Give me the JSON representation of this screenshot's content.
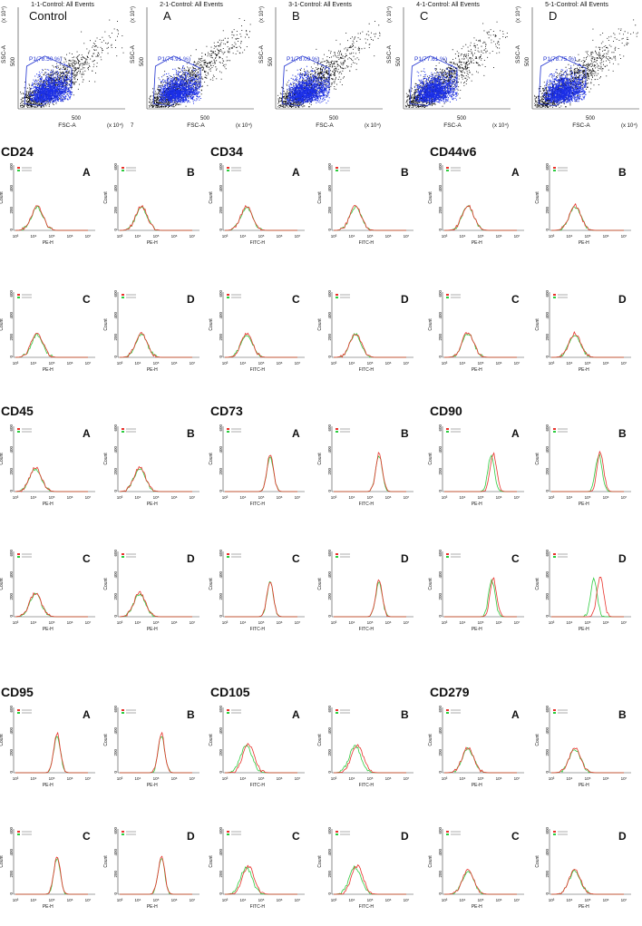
{
  "figure": {
    "scatter_panels": [
      {
        "title": "1-1-Control: All Events",
        "letter": "Control",
        "gate_label": "P1(78.50 %)",
        "xlabel": "FSC-A",
        "ylabel": "SSC-A",
        "x_scale": "(x 10⁴)",
        "y_scale": "(x 10⁴)",
        "x_tick": "500",
        "x_extra": "7",
        "y_tick": "500"
      },
      {
        "title": "2-1-Control: All Events",
        "letter": "A",
        "gate_label": "P1(74.91 %)",
        "xlabel": "FSC-A",
        "ylabel": "SSC-A",
        "x_scale": "(x 10⁴)",
        "y_scale": "(x 10⁴)",
        "x_tick": "500",
        "y_tick": "500"
      },
      {
        "title": "3-1-Control: All Events",
        "letter": "B",
        "gate_label": "P1(78.09 %)",
        "xlabel": "FSC-A",
        "ylabel": "SSC-A",
        "x_scale": "(x 10⁴)",
        "y_scale": "(x 10⁴)",
        "x_tick": "500",
        "y_tick": "500"
      },
      {
        "title": "4-1-Control: All Events",
        "letter": "C",
        "gate_label": "P1(77.61 %)",
        "xlabel": "FSC-A",
        "ylabel": "SSC-A",
        "x_scale": "(x 10⁴)",
        "y_scale": "(x 10⁴)",
        "x_tick": "500",
        "y_tick": "500"
      },
      {
        "title": "5-1-Control: All Events",
        "letter": "D",
        "gate_label": "P1(78.75 %)",
        "xlabel": "FSC-A",
        "ylabel": "SSC-A",
        "x_scale": "(x 10⁴)",
        "y_scale": "(x 10⁴)",
        "x_tick": "500",
        "y_tick": "500"
      }
    ],
    "marker_groups": [
      {
        "name": "CD24",
        "channel": "PE-H",
        "peak_log": 4.2,
        "panels": [
          {
            "letter": "A",
            "peak": 220
          },
          {
            "letter": "B",
            "peak": 220
          },
          {
            "letter": "C",
            "peak": 220
          },
          {
            "letter": "D",
            "peak": 220
          }
        ]
      },
      {
        "name": "CD34",
        "channel": "FITC-H",
        "peak_log": 4.2,
        "panels": [
          {
            "letter": "A",
            "peak": 220
          },
          {
            "letter": "B",
            "peak": 220
          },
          {
            "letter": "C",
            "peak": 220
          },
          {
            "letter": "D",
            "peak": 220
          }
        ]
      },
      {
        "name": "CD44v6",
        "channel": "PE-H",
        "peak_log": 4.3,
        "panels": [
          {
            "letter": "A",
            "peak": 230
          },
          {
            "letter": "B",
            "peak": 230
          },
          {
            "letter": "C",
            "peak": 230
          },
          {
            "letter": "D",
            "peak": 220
          }
        ]
      },
      {
        "name": "CD45",
        "channel": "PE-H",
        "peak_log": 4.1,
        "panels": [
          {
            "letter": "A",
            "peak": 220
          },
          {
            "letter": "B",
            "peak": 220
          },
          {
            "letter": "C",
            "peak": 220
          },
          {
            "letter": "D",
            "peak": 220
          }
        ]
      },
      {
        "name": "CD73",
        "channel": "FITC-H",
        "peak_log": 5.5,
        "panels": [
          {
            "letter": "A",
            "peak": 340
          },
          {
            "letter": "B",
            "peak": 350
          },
          {
            "letter": "C",
            "peak": 330
          },
          {
            "letter": "D",
            "peak": 340
          }
        ]
      },
      {
        "name": "CD90",
        "channel": "PE-H",
        "peak_log": 5.7,
        "panels": [
          {
            "letter": "A",
            "peak": 350
          },
          {
            "letter": "B",
            "peak": 360
          },
          {
            "letter": "C",
            "peak": 350
          },
          {
            "letter": "D",
            "peak": 370
          }
        ]
      },
      {
        "name": "CD95",
        "channel": "PE-H",
        "peak_log": 5.3,
        "panels": [
          {
            "letter": "A",
            "peak": 360
          },
          {
            "letter": "B",
            "peak": 360
          },
          {
            "letter": "C",
            "peak": 350
          },
          {
            "letter": "D",
            "peak": 350
          }
        ]
      },
      {
        "name": "CD105",
        "channel": "FITC-H",
        "peak_log": 4.3,
        "panels": [
          {
            "letter": "A",
            "peak": 260
          },
          {
            "letter": "B",
            "peak": 260
          },
          {
            "letter": "C",
            "peak": 260
          },
          {
            "letter": "D",
            "peak": 260
          }
        ]
      },
      {
        "name": "CD279",
        "channel": "PE-H",
        "peak_log": 4.3,
        "panels": [
          {
            "letter": "A",
            "peak": 230
          },
          {
            "letter": "B",
            "peak": 230
          },
          {
            "letter": "C",
            "peak": 220
          },
          {
            "letter": "D",
            "peak": 220
          }
        ]
      }
    ],
    "histogram_axes": {
      "ylabel": "Count",
      "y_ticks": [
        "0",
        "200",
        "400",
        "600"
      ],
      "ylim": [
        0,
        600
      ],
      "x_ticks": [
        "10³",
        "10⁴",
        "10⁵",
        "10⁶",
        "10⁷"
      ],
      "xlim_log": [
        3,
        7
      ]
    },
    "colors": {
      "sample": "#e8322b",
      "control": "#2ecc40",
      "gate": "#1d2fcf",
      "events_in_gate": "#1a2ee8",
      "events_out": "#000000"
    }
  },
  "chart_data": [
    {
      "type": "scatter",
      "title": "1-1-Control: All Events",
      "xlabel": "FSC-A",
      "ylabel": "SSC-A",
      "annotations": [
        "P1(78.50 %)"
      ]
    },
    {
      "type": "scatter",
      "title": "2-1-Control: All Events",
      "xlabel": "FSC-A",
      "ylabel": "SSC-A",
      "annotations": [
        "P1(74.91 %)"
      ]
    },
    {
      "type": "scatter",
      "title": "3-1-Control: All Events",
      "xlabel": "FSC-A",
      "ylabel": "SSC-A",
      "annotations": [
        "P1(78.09 %)"
      ]
    },
    {
      "type": "scatter",
      "title": "4-1-Control: All Events",
      "xlabel": "FSC-A",
      "ylabel": "SSC-A",
      "annotations": [
        "P1(77.61 %)"
      ]
    },
    {
      "type": "scatter",
      "title": "5-1-Control: All Events",
      "xlabel": "FSC-A",
      "ylabel": "SSC-A",
      "annotations": [
        "P1(78.75 %)"
      ]
    },
    {
      "type": "histogram",
      "groups": [
        "CD24",
        "CD34",
        "CD44v6",
        "CD45",
        "CD73",
        "CD90",
        "CD95",
        "CD105",
        "CD279"
      ],
      "ylabel": "Count",
      "ylim": [
        0,
        600
      ],
      "x_scale": "log",
      "x_ticks": [
        "10³",
        "10⁴",
        "10⁵",
        "10⁶",
        "10⁷"
      ],
      "panels_per_group": [
        "A",
        "B",
        "C",
        "D"
      ]
    }
  ]
}
